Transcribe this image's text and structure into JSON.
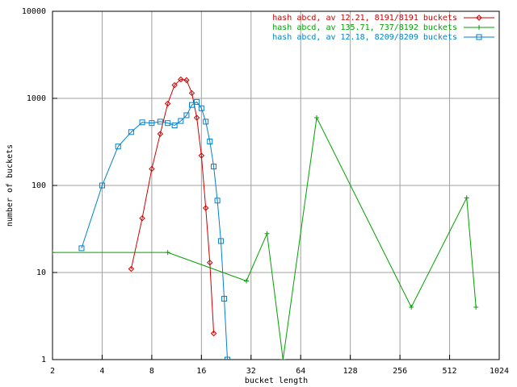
{
  "chart_data": {
    "type": "line",
    "x_label": "bucket length",
    "y_label": "number of buckets",
    "log_x": true,
    "log_y": true,
    "grid": true,
    "legend": "top-right",
    "xlim": [
      2,
      1024
    ],
    "xticks": [
      2,
      4,
      8,
      16,
      32,
      64,
      128,
      256,
      512,
      1024
    ],
    "ylim": [
      1,
      10000
    ],
    "yticks": [
      1,
      10,
      100,
      1000,
      10000
    ],
    "series": [
      {
        "name": "hash abcd, av 12.21, 8191/8191 buckets",
        "color": "#cc0000",
        "marker": "diamond",
        "x": [
          6,
          7,
          8,
          9,
          10,
          11,
          12,
          13,
          14,
          15,
          16,
          17,
          18,
          19
        ],
        "values": [
          11,
          42,
          155,
          390,
          870,
          1420,
          1650,
          1620,
          1150,
          600,
          220,
          55,
          13,
          2
        ]
      },
      {
        "name": "hash abcd, av 135.71, 737/8192 buckets",
        "color": "#00a000",
        "marker": "plus",
        "x": [
          2,
          10,
          30,
          40,
          50,
          80,
          300,
          650,
          740
        ],
        "values": [
          17,
          17,
          8,
          28,
          1,
          600,
          4,
          72,
          4
        ]
      },
      {
        "name": "hash abcd, av 12.18, 8209/8209 buckets",
        "color": "#0080cc",
        "marker": "square",
        "x": [
          3,
          4,
          5,
          6,
          7,
          8,
          9,
          10,
          11,
          12,
          13,
          14,
          15,
          16,
          17,
          18,
          19,
          20,
          21,
          22,
          23
        ],
        "values": [
          19,
          100,
          280,
          410,
          530,
          520,
          540,
          520,
          490,
          550,
          640,
          840,
          910,
          770,
          540,
          320,
          165,
          67,
          23,
          5,
          1
        ]
      }
    ]
  }
}
